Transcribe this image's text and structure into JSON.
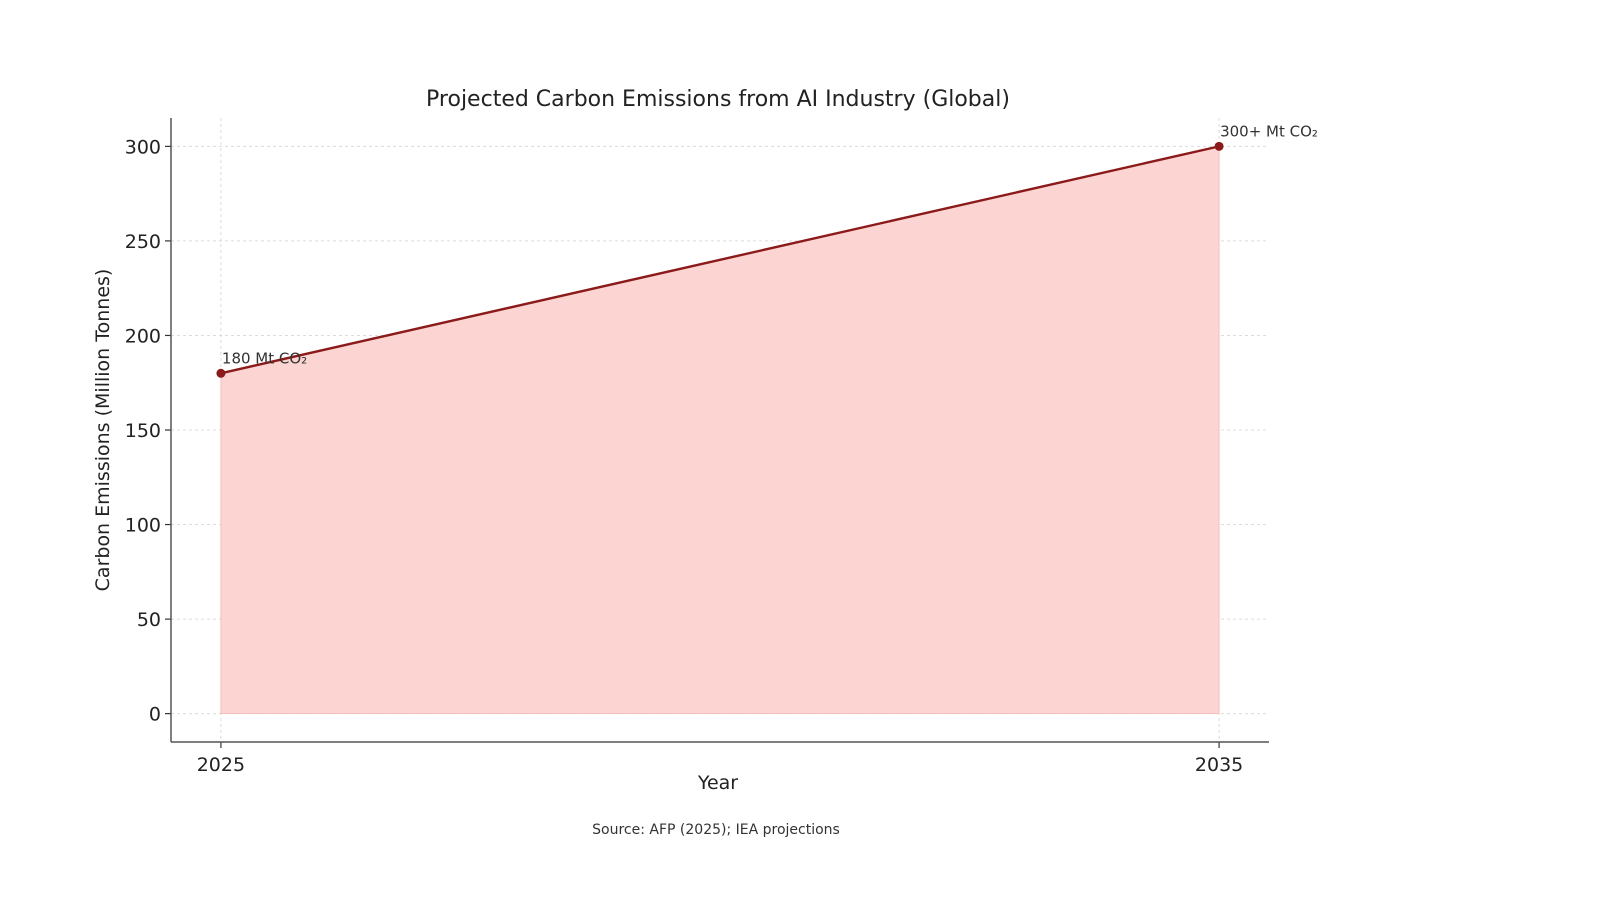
{
  "chart_data": {
    "type": "area",
    "title": "Projected Carbon Emissions from AI Industry (Global)",
    "xlabel": "Year",
    "ylabel": "Carbon Emissions (Million Tonnes)",
    "x": [
      2025,
      2035
    ],
    "series": [
      {
        "values": [
          180,
          300
        ],
        "line_color": "#8b1a1a",
        "fill_color": "#fcd5d3"
      }
    ],
    "xlim": [
      2024.5,
      2035.5
    ],
    "ylim": [
      -15,
      315
    ],
    "x_ticks": [
      "2025",
      "2035"
    ],
    "y_ticks": [
      0,
      50,
      100,
      150,
      200,
      250,
      300
    ],
    "grid": true,
    "annotations": [
      {
        "x": 2025,
        "y": 180,
        "text": "180 Mt CO₂"
      },
      {
        "x": 2035,
        "y": 300,
        "text": "300+ Mt CO₂"
      }
    ],
    "source": "Source: AFP (2025); IEA projections"
  }
}
